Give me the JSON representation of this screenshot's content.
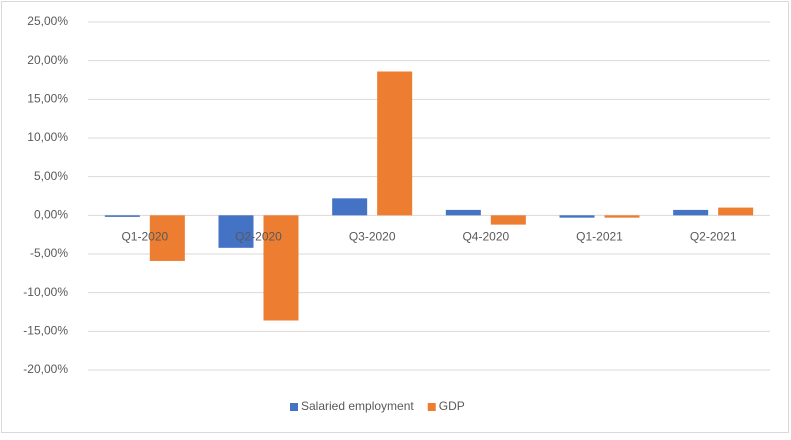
{
  "chart_data": {
    "type": "bar",
    "categories": [
      "Q1-2020",
      "Q2-2020",
      "Q3-2020",
      "Q4-2020",
      "Q1-2021",
      "Q2-2021"
    ],
    "series": [
      {
        "name": "Salaried employment",
        "color": "#4472c4",
        "values": [
          -0.2,
          -4.2,
          2.2,
          0.7,
          -0.3,
          0.7
        ]
      },
      {
        "name": "GDP",
        "color": "#ed7d31",
        "values": [
          -5.9,
          -13.6,
          18.6,
          -1.2,
          -0.3,
          1.0
        ]
      }
    ],
    "ylim": [
      -20,
      25
    ],
    "yticks": [
      {
        "value": -20,
        "label": "-20,00%"
      },
      {
        "value": -15,
        "label": "-15,00%"
      },
      {
        "value": -10,
        "label": "-10,00%"
      },
      {
        "value": -5,
        "label": "-5,00%"
      },
      {
        "value": 0,
        "label": "0,00%"
      },
      {
        "value": 5,
        "label": "5,00%"
      },
      {
        "value": 10,
        "label": "10,00%"
      },
      {
        "value": 15,
        "label": "15,00%"
      },
      {
        "value": 20,
        "label": "20,00%"
      },
      {
        "value": 25,
        "label": "25,00%"
      }
    ],
    "grid": true,
    "legend": "bottom"
  }
}
